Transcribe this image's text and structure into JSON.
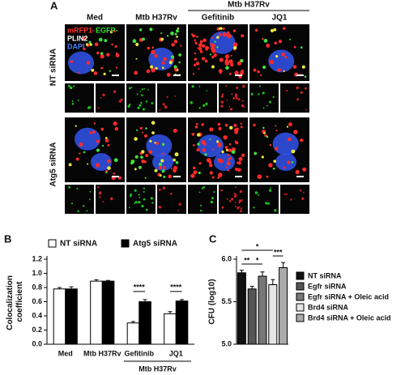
{
  "panel_a": {
    "label": "A",
    "columns": [
      "Med",
      "Mtb H37Rv",
      "Gefitinib",
      "JQ1"
    ],
    "group_label": "Mtb H37Rv",
    "channels": [
      {
        "name": "mRFP1-",
        "color": "#ff3030"
      },
      {
        "name": "EGFP-",
        "color": "#30e030"
      },
      {
        "name": "PLIN2",
        "color": "#ffffff"
      },
      {
        "name": "DAPI",
        "color": "#4a7dff"
      }
    ],
    "rows": [
      "NT siRNA",
      "Atg5 siRNA"
    ]
  },
  "chart_data": [
    {
      "type": "bar",
      "panel_label": "B",
      "ylabel": "Colocalization coefficient",
      "categories": [
        "Med",
        "Mtb H37Rv",
        "Gefitinib",
        "JQ1"
      ],
      "group_label": "Mtb H37Rv",
      "series": [
        {
          "name": "NT siRNA",
          "color": "#ffffff",
          "values": [
            0.78,
            0.89,
            0.3,
            0.43
          ],
          "errors": [
            0.02,
            0.02,
            0.02,
            0.03
          ]
        },
        {
          "name": "Atg5 siRNA",
          "color": "#000000",
          "values": [
            0.78,
            0.89,
            0.6,
            0.61
          ],
          "errors": [
            0.03,
            0.01,
            0.03,
            0.02
          ]
        }
      ],
      "ylim": [
        0,
        1.2
      ],
      "yticks": [
        {
          "value": 0,
          "label": "0.0"
        },
        0.2,
        0.4,
        0.6,
        0.8,
        {
          "value": 1,
          "label": "1.0"
        },
        1.2
      ],
      "annotations": [
        "****",
        "****"
      ]
    },
    {
      "type": "bar",
      "panel_label": "C",
      "ylabel": "CFU (log10)",
      "categories": [
        "NT siRNA",
        "Egfr siRNA",
        "Egfr siRNA + Oleic acid",
        "Brd4 siRNA",
        "Brd4 siRNA + Oleic acid"
      ],
      "colors": [
        "#111111",
        "#555555",
        "#777777",
        "#e6e6e6",
        "#aaaaaa"
      ],
      "values": [
        5.84,
        5.65,
        5.8,
        5.7,
        5.9
      ],
      "errors": [
        0.03,
        0.03,
        0.05,
        0.06,
        0.06
      ],
      "ylim": [
        5.0,
        6.0
      ],
      "yticks": [
        {
          "value": 5.0,
          "label": "5.0"
        },
        5.5,
        {
          "value": 6.0,
          "label": "6.0"
        }
      ],
      "annotations": [
        "**",
        "*",
        "*",
        "***"
      ]
    }
  ]
}
